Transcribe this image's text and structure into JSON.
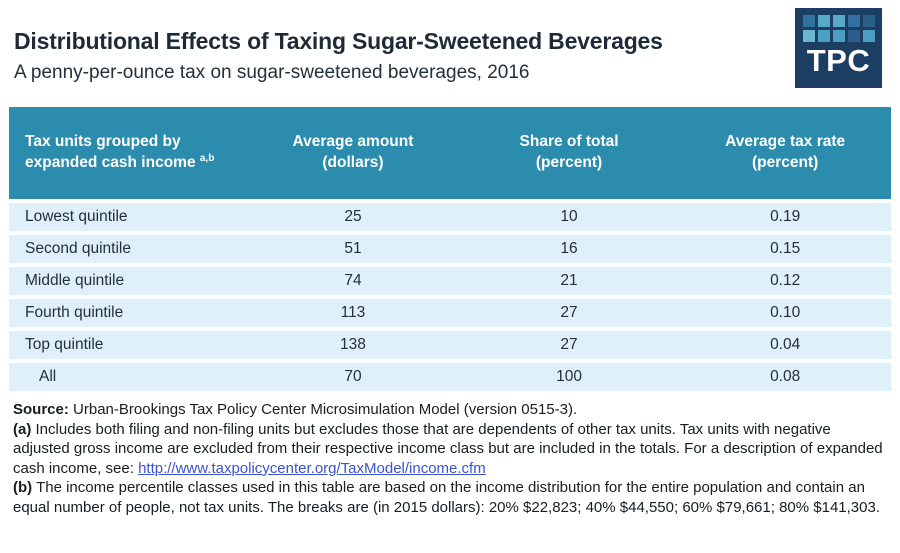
{
  "header": {
    "title": "Distributional Effects of Taxing Sugar-Sweetened Beverages",
    "subtitle": "A penny-per-ounce tax on sugar-sweetened beverages, 2016"
  },
  "logo": {
    "text": "TPC",
    "grid": [
      [
        "#33719F",
        "#58AAC6",
        "#58AAC6",
        "#33719F",
        "#2C5E8A"
      ],
      [
        "#6CB6CF",
        "#4B9FC0",
        "#4B9FC0",
        "#2C5E8A",
        "#4B9FC0"
      ]
    ]
  },
  "colors": {
    "accent_teal": "#2B8CAE",
    "row_light_blue": "#DFF0F8",
    "link_blue": "#3B52D1",
    "title_navy": "#1E2B36",
    "logo_navy": "#1C3E63"
  },
  "table": {
    "columns": [
      {
        "line1": "Tax units grouped by",
        "line2": "expanded cash income",
        "superscript": "a,b"
      },
      {
        "line1": "Average amount",
        "line2": "(dollars)"
      },
      {
        "line1": "Share of total",
        "line2": "(percent)"
      },
      {
        "line1": "Average tax rate",
        "line2": "(percent)"
      }
    ],
    "rows": [
      {
        "label": "Lowest quintile",
        "average_amount": "25",
        "share_of_total": "10",
        "average_tax_rate": "0.19",
        "indent": false
      },
      {
        "label": "Second quintile",
        "average_amount": "51",
        "share_of_total": "16",
        "average_tax_rate": "0.15",
        "indent": false
      },
      {
        "label": "Middle quintile",
        "average_amount": "74",
        "share_of_total": "21",
        "average_tax_rate": "0.12",
        "indent": false
      },
      {
        "label": "Fourth quintile",
        "average_amount": "113",
        "share_of_total": "27",
        "average_tax_rate": "0.10",
        "indent": false
      },
      {
        "label": "Top quintile",
        "average_amount": "138",
        "share_of_total": "27",
        "average_tax_rate": "0.04",
        "indent": false
      },
      {
        "label": "All",
        "average_amount": "70",
        "share_of_total": "100",
        "average_tax_rate": "0.08",
        "indent": true
      }
    ]
  },
  "notes": {
    "source_label": "Source:",
    "source_text": "Urban-Brookings Tax Policy Center Microsimulation Model (version 0515-3).",
    "a_label": "(a)",
    "a_text": "Includes both filing and non-filing units but excludes those that are dependents of other tax units. Tax units with negative adjusted gross income are excluded from their respective income class but are included in the totals. For a description of expanded cash income, see:",
    "a_link": "http://www.taxpolicycenter.org/TaxModel/income.cfm",
    "b_label": "(b)",
    "b_text": "The income percentile classes used in this table are based on the income distribution for the entire population and contain an equal number of people, not tax units. The breaks are (in 2015 dollars): 20% $22,823; 40% $44,550; 60% $79,661; 80% $141,303."
  },
  "chart_data": {
    "type": "table",
    "title": "Distributional Effects of Taxing Sugar-Sweetened Beverages",
    "subtitle": "A penny-per-ounce tax on sugar-sweetened beverages, 2016",
    "columns": [
      "Tax units grouped by expanded cash income",
      "Average amount (dollars)",
      "Share of total (percent)",
      "Average tax rate (percent)"
    ],
    "rows": [
      [
        "Lowest quintile",
        25,
        10,
        0.19
      ],
      [
        "Second quintile",
        51,
        16,
        0.15
      ],
      [
        "Middle quintile",
        74,
        21,
        0.12
      ],
      [
        "Fourth quintile",
        113,
        27,
        0.1
      ],
      [
        "Top quintile",
        138,
        27,
        0.04
      ],
      [
        "All",
        70,
        100,
        0.08
      ]
    ]
  }
}
